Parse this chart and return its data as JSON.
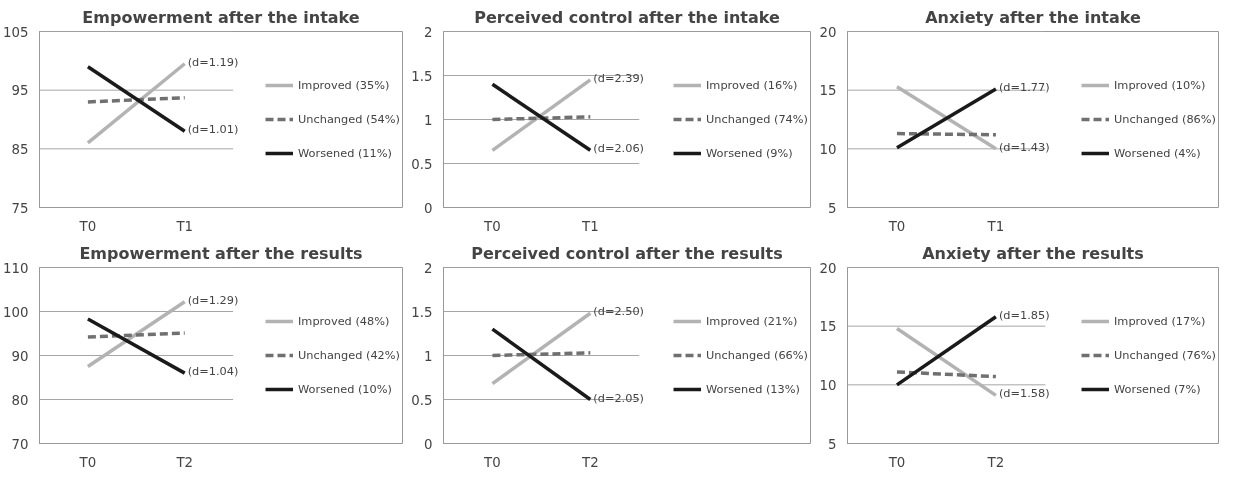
{
  "chart_data": [
    {
      "type": "line",
      "title": "Empowerment after the intake",
      "categories": [
        "T0",
        "T1"
      ],
      "ylim": [
        75,
        105
      ],
      "yticks": [
        75,
        85,
        95,
        105
      ],
      "grid": "y",
      "legend": "right",
      "line_style": "solid",
      "marker": "none",
      "series": [
        {
          "name": "Improved (35%)",
          "color": "#b3b3b3",
          "values": [
            86,
            99.5
          ]
        },
        {
          "name": "Unchanged (54%)",
          "color": "#707070",
          "values": [
            93,
            93.7
          ],
          "line_style": "dashed"
        },
        {
          "name": "Worsened (11%)",
          "color": "#1a1a1a",
          "values": [
            99,
            88
          ]
        }
      ],
      "annotations": [
        {
          "text": "(d=1.19)",
          "x": "T1",
          "y": 99.5
        },
        {
          "text": "(d=1.01)",
          "x": "T1",
          "y": 88
        }
      ]
    },
    {
      "type": "line",
      "title": "Perceived control after the intake",
      "categories": [
        "T0",
        "T1"
      ],
      "ylim": [
        0,
        2
      ],
      "yticks": [
        0,
        0.5,
        1,
        1.5,
        2
      ],
      "grid": "y",
      "legend": "right",
      "line_style": "solid",
      "marker": "none",
      "series": [
        {
          "name": "Improved (16%)",
          "color": "#b3b3b3",
          "values": [
            0.65,
            1.45
          ]
        },
        {
          "name": "Unchanged (74%)",
          "color": "#707070",
          "values": [
            1.0,
            1.03
          ],
          "line_style": "dashed"
        },
        {
          "name": "Worsened (9%)",
          "color": "#1a1a1a",
          "values": [
            1.4,
            0.65
          ]
        }
      ],
      "annotations": [
        {
          "text": "(d=2.39)",
          "x": "T1",
          "y": 1.45
        },
        {
          "text": "(d=2.06)",
          "x": "T1",
          "y": 0.65
        }
      ]
    },
    {
      "type": "line",
      "title": "Anxiety after the intake",
      "categories": [
        "T0",
        "T1"
      ],
      "ylim": [
        5,
        20
      ],
      "yticks": [
        5,
        10,
        15,
        20
      ],
      "grid": "y",
      "legend": "right",
      "line_style": "solid",
      "marker": "none",
      "series": [
        {
          "name": "Improved (10%)",
          "color": "#b3b3b3",
          "values": [
            15.3,
            10
          ]
        },
        {
          "name": "Unchanged (86%)",
          "color": "#707070",
          "values": [
            11.3,
            11.2
          ],
          "line_style": "dashed"
        },
        {
          "name": "Worsened (4%)",
          "color": "#1a1a1a",
          "values": [
            10.1,
            15.1
          ]
        }
      ],
      "annotations": [
        {
          "text": "(d=1.77)",
          "x": "T1",
          "y": 15.1
        },
        {
          "text": "(d=1.43)",
          "x": "T1",
          "y": 10
        }
      ]
    },
    {
      "type": "line",
      "title": "Empowerment after the results",
      "categories": [
        "T0",
        "T2"
      ],
      "ylim": [
        70,
        110
      ],
      "yticks": [
        70,
        80,
        90,
        100,
        110
      ],
      "grid": "y",
      "legend": "right",
      "line_style": "solid",
      "marker": "none",
      "series": [
        {
          "name": "Improved (48%)",
          "color": "#b3b3b3",
          "values": [
            87.5,
            102.2
          ]
        },
        {
          "name": "Unchanged (42%)",
          "color": "#707070",
          "values": [
            94.2,
            95.1
          ],
          "line_style": "dashed"
        },
        {
          "name": "Worsened (10%)",
          "color": "#1a1a1a",
          "values": [
            98.3,
            86
          ]
        }
      ],
      "annotations": [
        {
          "text": "(d=1.29)",
          "x": "T2",
          "y": 102.2
        },
        {
          "text": "(d=1.04)",
          "x": "T2",
          "y": 86
        }
      ]
    },
    {
      "type": "line",
      "title": "Perceived control after the results",
      "categories": [
        "T0",
        "T2"
      ],
      "ylim": [
        0,
        2
      ],
      "yticks": [
        0,
        0.5,
        1,
        1.5,
        2
      ],
      "grid": "y",
      "legend": "right",
      "line_style": "solid",
      "marker": "none",
      "series": [
        {
          "name": "Improved (21%)",
          "color": "#b3b3b3",
          "values": [
            0.68,
            1.48
          ]
        },
        {
          "name": "Unchanged (66%)",
          "color": "#707070",
          "values": [
            1.0,
            1.03
          ],
          "line_style": "dashed"
        },
        {
          "name": "Worsened (13%)",
          "color": "#1a1a1a",
          "values": [
            1.3,
            0.5
          ]
        }
      ],
      "annotations": [
        {
          "text": "(d=2.50)",
          "x": "T2",
          "y": 1.48
        },
        {
          "text": "(d=2.05)",
          "x": "T2",
          "y": 0.5
        }
      ]
    },
    {
      "type": "line",
      "title": "Anxiety after the results",
      "categories": [
        "T0",
        "T2"
      ],
      "ylim": [
        5,
        20
      ],
      "yticks": [
        5,
        10,
        15,
        20
      ],
      "grid": "y",
      "legend": "right",
      "line_style": "solid",
      "marker": "none",
      "series": [
        {
          "name": "Improved (17%)",
          "color": "#b3b3b3",
          "values": [
            14.8,
            9.1
          ]
        },
        {
          "name": "Unchanged (76%)",
          "color": "#707070",
          "values": [
            11.1,
            10.7
          ],
          "line_style": "dashed"
        },
        {
          "name": "Worsened (7%)",
          "color": "#1a1a1a",
          "values": [
            10,
            15.8
          ]
        }
      ],
      "annotations": [
        {
          "text": "(d=1.85)",
          "x": "T2",
          "y": 15.8
        },
        {
          "text": "(d=1.58)",
          "x": "T2",
          "y": 9.1
        }
      ]
    }
  ]
}
